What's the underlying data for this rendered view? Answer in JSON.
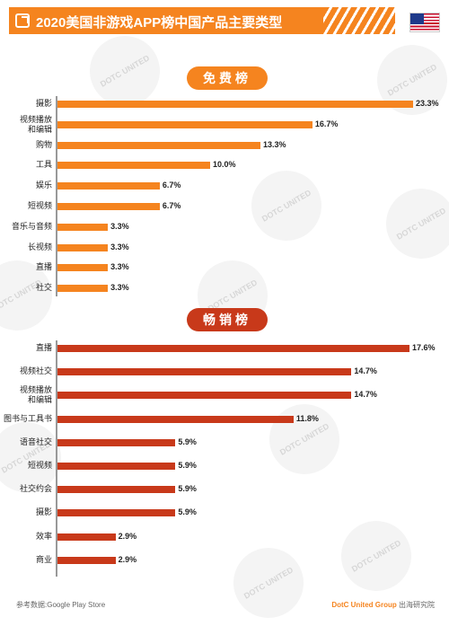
{
  "header": {
    "title": "2020美国非游戏APP榜中国产品主要类型"
  },
  "watermark": "DOTC UNITED",
  "chart_data": [
    {
      "type": "bar",
      "title": "免费榜",
      "orientation": "horizontal",
      "categories": [
        "摄影",
        "视频播放\n和编辑",
        "购物",
        "工具",
        "娱乐",
        "短视频",
        "音乐与音频",
        "长视频",
        "直播",
        "社交"
      ],
      "values": [
        23.3,
        16.7,
        13.3,
        10.0,
        6.7,
        6.7,
        3.3,
        3.3,
        3.3,
        3.3
      ],
      "value_labels": [
        "23.3%",
        "16.7%",
        "13.3%",
        "10.0%",
        "6.7%",
        "6.7%",
        "3.3%",
        "3.3%",
        "3.3%",
        "3.3%"
      ],
      "xlim": [
        0,
        23.3
      ],
      "color": "#f5841f"
    },
    {
      "type": "bar",
      "title": "畅销榜",
      "orientation": "horizontal",
      "categories": [
        "直播",
        "视频社交",
        "视频播放\n和编辑",
        "图书与工具书",
        "语音社交",
        "短视频",
        "社交约会",
        "摄影",
        "效率",
        "商业"
      ],
      "values": [
        17.6,
        14.7,
        14.7,
        11.8,
        5.9,
        5.9,
        5.9,
        5.9,
        2.9,
        2.9
      ],
      "value_labels": [
        "17.6%",
        "14.7%",
        "14.7%",
        "11.8%",
        "5.9%",
        "5.9%",
        "5.9%",
        "5.9%",
        "2.9%",
        "2.9%"
      ],
      "xlim": [
        0,
        17.6
      ],
      "color": "#c8391a"
    }
  ],
  "footer": {
    "source": "参考数据:Google Play Store",
    "brand": "DotC United Group",
    "institute": " 出海研究院"
  }
}
